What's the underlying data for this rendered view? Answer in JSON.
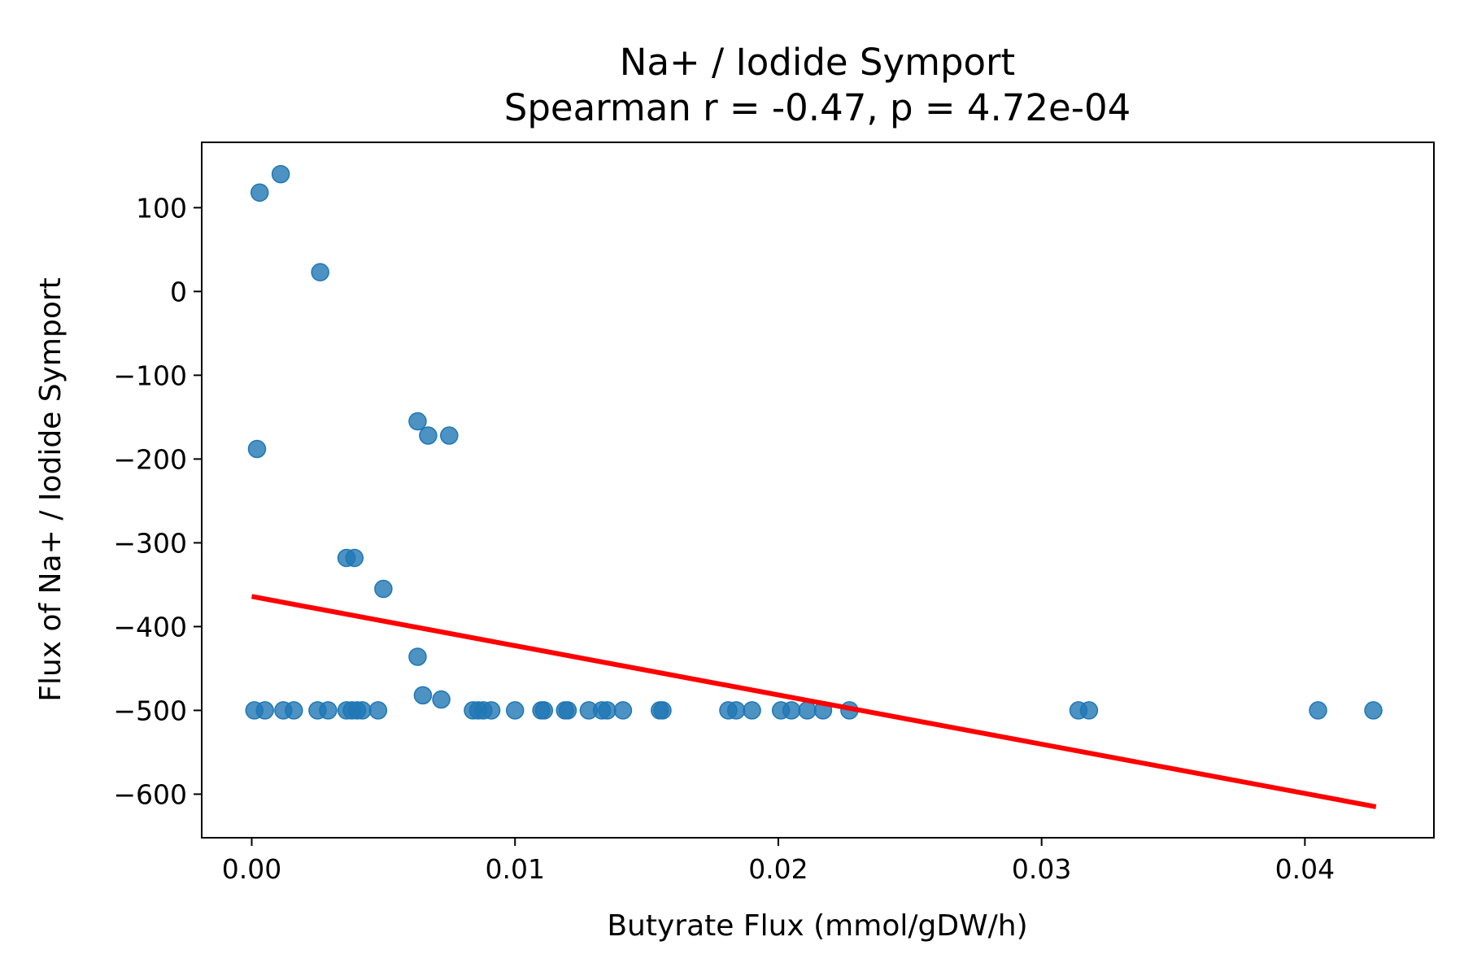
{
  "chart_data": {
    "type": "scatter",
    "title": "Na+ / Iodide Symport",
    "subtitle": "Spearman r = -0.47, p = 4.72e-04",
    "xlabel": "Butyrate Flux (mmol/gDW/h)",
    "ylabel": "Flux of Na+ / Iodide Symport",
    "xlim": [
      -0.0019,
      0.0449
    ],
    "ylim": [
      -652,
      178
    ],
    "xticks": [
      0.0,
      0.01,
      0.02,
      0.03,
      0.04
    ],
    "xtick_labels": [
      "0.00",
      "0.01",
      "0.02",
      "0.03",
      "0.04"
    ],
    "yticks": [
      100,
      0,
      -100,
      -200,
      -300,
      -400,
      -500,
      -600
    ],
    "ytick_labels": [
      "100",
      "0",
      "−100",
      "−200",
      "−300",
      "−400",
      "−500",
      "−600"
    ],
    "grid": false,
    "marker_color": "#1f77b4",
    "line_color": "#ff0000",
    "series": [
      {
        "points": [
          [
            0.0003,
            118
          ],
          [
            0.0011,
            140
          ],
          [
            0.0026,
            23
          ],
          [
            0.0002,
            -188
          ],
          [
            0.0063,
            -155
          ],
          [
            0.0067,
            -172
          ],
          [
            0.0075,
            -172
          ],
          [
            0.0036,
            -318
          ],
          [
            0.0039,
            -318
          ],
          [
            0.005,
            -355
          ],
          [
            0.0063,
            -436
          ],
          [
            0.0065,
            -482
          ],
          [
            0.0072,
            -487
          ],
          [
            0.0001,
            -500
          ],
          [
            0.0005,
            -500
          ],
          [
            0.0012,
            -500
          ],
          [
            0.0016,
            -500
          ],
          [
            0.0025,
            -500
          ],
          [
            0.0029,
            -500
          ],
          [
            0.0036,
            -500
          ],
          [
            0.0038,
            -500
          ],
          [
            0.004,
            -500
          ],
          [
            0.0042,
            -500
          ],
          [
            0.0048,
            -500
          ],
          [
            0.0084,
            -500
          ],
          [
            0.0086,
            -500
          ],
          [
            0.0088,
            -500
          ],
          [
            0.0091,
            -500
          ],
          [
            0.01,
            -500
          ],
          [
            0.011,
            -500
          ],
          [
            0.0111,
            -500
          ],
          [
            0.0119,
            -500
          ],
          [
            0.012,
            -500
          ],
          [
            0.0128,
            -500
          ],
          [
            0.0133,
            -500
          ],
          [
            0.0135,
            -500
          ],
          [
            0.0141,
            -500
          ],
          [
            0.0155,
            -500
          ],
          [
            0.0156,
            -500
          ],
          [
            0.0181,
            -500
          ],
          [
            0.0184,
            -500
          ],
          [
            0.019,
            -500
          ],
          [
            0.0201,
            -500
          ],
          [
            0.0205,
            -500
          ],
          [
            0.0211,
            -500
          ],
          [
            0.0217,
            -500
          ],
          [
            0.0227,
            -500
          ],
          [
            0.0314,
            -500
          ],
          [
            0.0318,
            -500
          ],
          [
            0.0405,
            -500
          ],
          [
            0.0426,
            -500
          ]
        ]
      }
    ],
    "regression_line": {
      "x": [
        0.0,
        0.0427
      ],
      "y": [
        -364,
        -615
      ]
    }
  }
}
